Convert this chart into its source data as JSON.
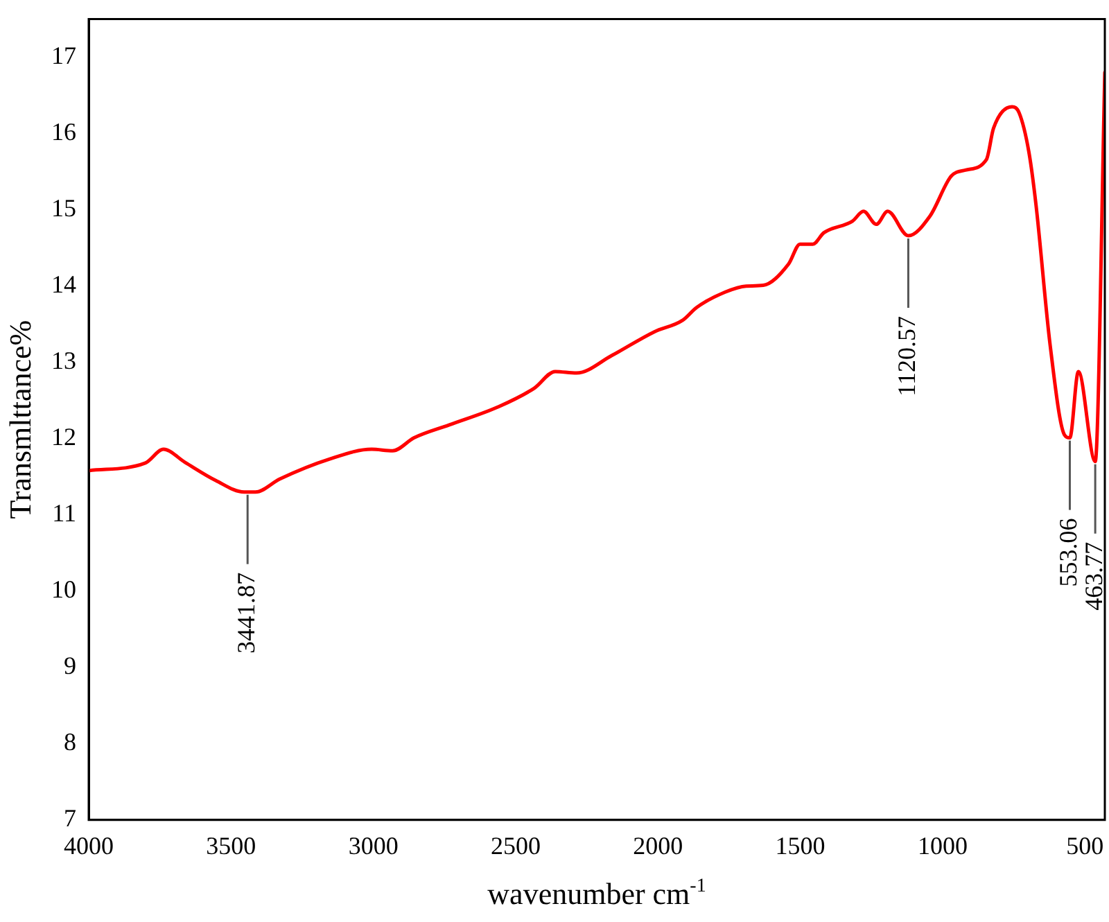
{
  "chart_data": {
    "type": "line",
    "xlabel": "wavenumber cm$^{-1}$",
    "ylabel": "Transmlttance%",
    "xlim": [
      4000,
      430
    ],
    "ylim": [
      7,
      17.5
    ],
    "xticks": [
      4000,
      3500,
      3000,
      2500,
      2000,
      1500,
      1000,
      500
    ],
    "yticks": [
      7,
      8,
      9,
      10,
      11,
      12,
      13,
      14,
      15,
      16,
      17
    ],
    "grid": false,
    "legend": false,
    "marker": "none",
    "line_style": "solid",
    "series": [
      {
        "color": "#ff0000",
        "x": [
          4000,
          3801,
          3737,
          3662,
          3553,
          3454,
          3414,
          3329,
          3155,
          3006,
          2932,
          2857,
          2733,
          2559,
          2435,
          2361,
          2286,
          2162,
          2013,
          1914,
          1864,
          1765,
          1690,
          1630,
          1541,
          1501,
          1456,
          1417,
          1317,
          1278,
          1233,
          1193,
          1120.57,
          1044,
          970,
          920,
          846,
          821,
          756,
          731,
          697,
          672,
          622,
          572,
          553.06,
          523,
          463.77,
          430
        ],
        "values": [
          11.58,
          11.68,
          11.86,
          11.69,
          11.45,
          11.3,
          11.3,
          11.47,
          11.73,
          11.86,
          11.84,
          12.01,
          12.18,
          12.42,
          12.66,
          12.88,
          12.86,
          13.09,
          13.4,
          13.55,
          13.72,
          13.92,
          14.0,
          14.01,
          14.29,
          14.55,
          14.55,
          14.7,
          14.85,
          14.98,
          14.81,
          14.98,
          14.66,
          14.92,
          15.44,
          15.52,
          15.66,
          16.07,
          16.35,
          16.27,
          15.76,
          15.07,
          13.22,
          12.05,
          12.01,
          12.88,
          11.7,
          16.8
        ]
      }
    ],
    "annotations": [
      {
        "text": "3441.87",
        "x": 3441.87,
        "y": 11.3
      },
      {
        "text": "1120.57",
        "x": 1120.57,
        "y": 14.66
      },
      {
        "text": "553.06",
        "x": 553.06,
        "y": 12.01
      },
      {
        "text": "463.77",
        "x": 463.77,
        "y": 11.7
      }
    ]
  }
}
